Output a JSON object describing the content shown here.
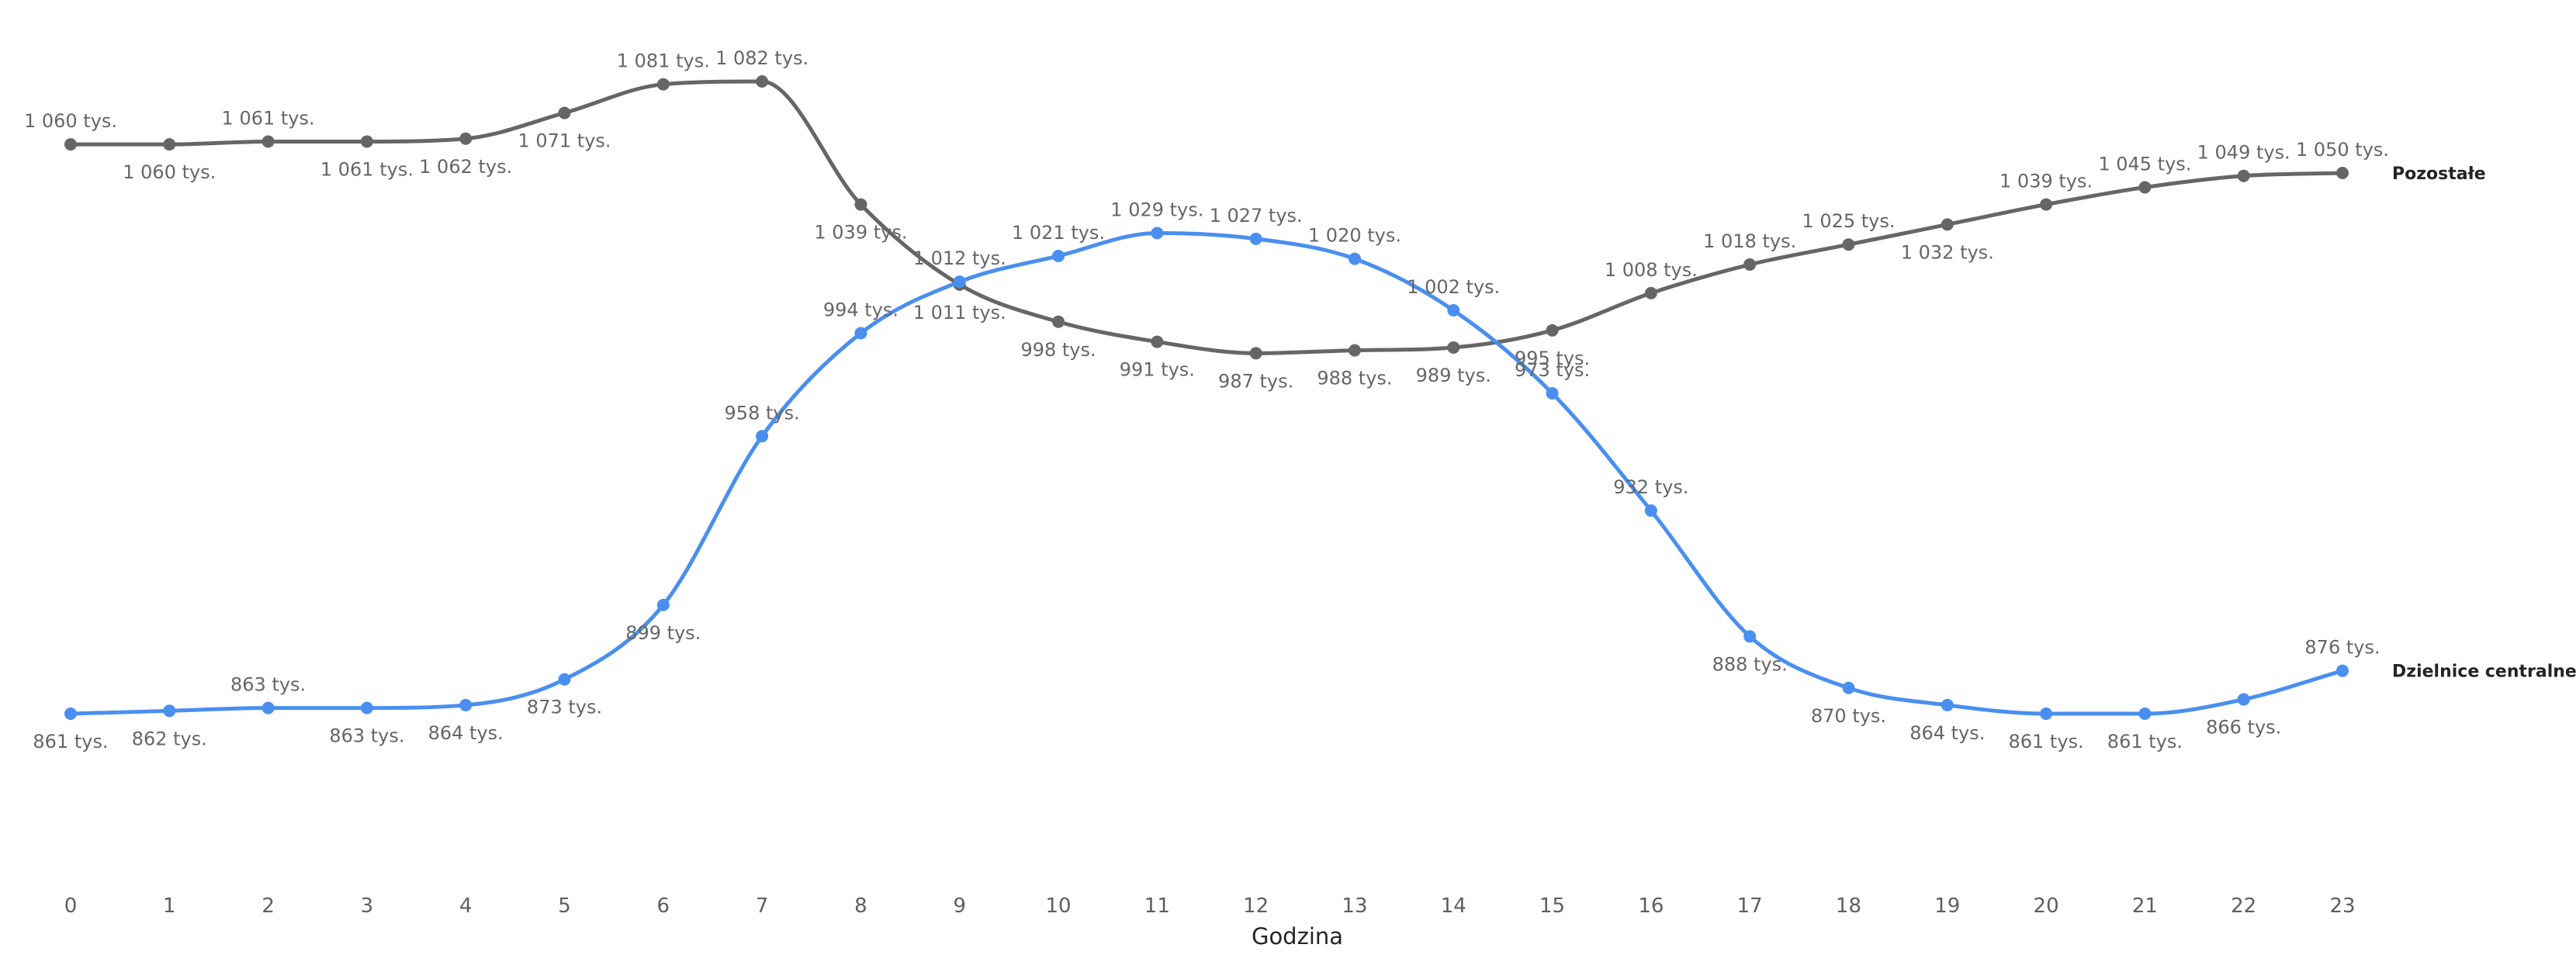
{
  "chart_data": {
    "type": "line",
    "xlabel": "Godzina",
    "ylabel": "",
    "x": [
      0,
      1,
      2,
      3,
      4,
      5,
      6,
      7,
      8,
      9,
      10,
      11,
      12,
      13,
      14,
      15,
      16,
      17,
      18,
      19,
      20,
      21,
      22,
      23
    ],
    "x_tick_labels": [
      "0",
      "1",
      "2",
      "3",
      "4",
      "5",
      "6",
      "7",
      "8",
      "9",
      "10",
      "11",
      "12",
      "13",
      "14",
      "15",
      "16",
      "17",
      "18",
      "19",
      "20",
      "21",
      "22",
      "23"
    ],
    "value_unit_suffix": "tys.",
    "ylim": [
      850,
      1090
    ],
    "grid": false,
    "legend": "inline at line ends (right)",
    "series": [
      {
        "name": "Pozostałe",
        "color": "#666666",
        "values": [
          1060,
          1060,
          1061,
          1061,
          1062,
          1071,
          1081,
          1082,
          1039,
          1011,
          998,
          991,
          987,
          988,
          989,
          995,
          1008,
          1018,
          1025,
          1032,
          1039,
          1045,
          1049,
          1050
        ],
        "labels": [
          "1 060 tys.",
          "1 060 tys.",
          "1 061 tys.",
          "1 061 tys.",
          "1 062 tys.",
          "1 071 tys.",
          "1 081 tys.",
          "1 082 tys.",
          "1 039 tys.",
          "1 011 tys.",
          "998 tys.",
          "991 tys.",
          "987 tys.",
          "988 tys.",
          "989 tys.",
          "995 tys.",
          "1 008 tys.",
          "1 018 tys.",
          "1 025 tys.",
          "1 032 tys.",
          "1 039 tys.",
          "1 045 tys.",
          "1 049 tys.",
          "1 050 tys."
        ]
      },
      {
        "name": "Dzielnice centralne",
        "color": "#4a8ff0",
        "values": [
          861,
          862,
          863,
          863,
          864,
          873,
          899,
          958,
          994,
          1012,
          1021,
          1029,
          1027,
          1020,
          1002,
          973,
          932,
          888,
          870,
          864,
          861,
          861,
          866,
          876
        ],
        "labels": [
          "861 tys.",
          "862 tys.",
          "863 tys.",
          "863 tys.",
          "864 tys.",
          "873 tys.",
          "899 tys.",
          "958 tys.",
          "994 tys.",
          "1 012 tys.",
          "1 021 tys.",
          "1 029 tys.",
          "1 027 tys.",
          "1 020 tys.",
          "1 002 tys.",
          "973 tys.",
          "932 tys.",
          "888 tys.",
          "870 tys.",
          "864 tys.",
          "861 tys.",
          "861 tys.",
          "866 tys.",
          "876 tys."
        ]
      }
    ]
  }
}
